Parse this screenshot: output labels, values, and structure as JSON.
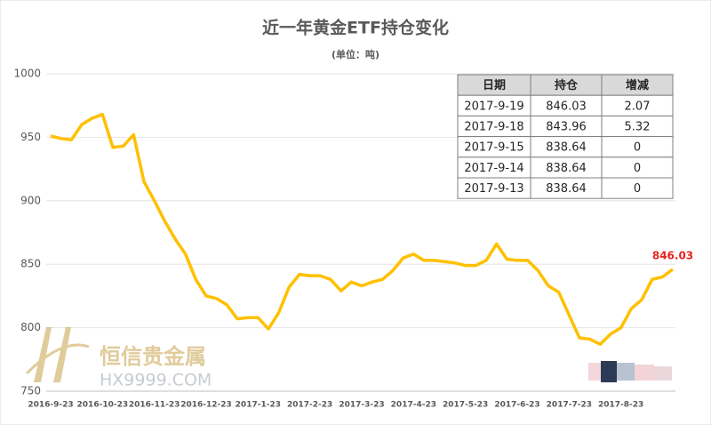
{
  "chart_data": {
    "type": "line",
    "title": "近一年黄金ETF持仓变化",
    "subtitle": "(单位：吨)",
    "categories": [
      "2016-9-23",
      null,
      null,
      null,
      null,
      "2016-10-23",
      null,
      null,
      null,
      null,
      "2016-11-23",
      null,
      null,
      null,
      null,
      "2016-12-23",
      null,
      null,
      null,
      null,
      "2017-1-23",
      null,
      null,
      null,
      null,
      "2017-2-23",
      null,
      null,
      null,
      null,
      "2017-3-23",
      null,
      null,
      null,
      null,
      "2017-4-23",
      null,
      null,
      null,
      null,
      "2017-5-23",
      null,
      null,
      null,
      null,
      "2017-6-23",
      null,
      null,
      null,
      null,
      "2017-7-23",
      null,
      null,
      null,
      null,
      "2017-8-23",
      null,
      null,
      null,
      null,
      null
    ],
    "series": [
      {
        "color": "#ffc000",
        "values": [
          951,
          949,
          948,
          960,
          965,
          968,
          942,
          943,
          952,
          915,
          900,
          884,
          870,
          858,
          838,
          825,
          823,
          818,
          807,
          808,
          808,
          799,
          812,
          832,
          842,
          841,
          841,
          838,
          829,
          836,
          833,
          836,
          838,
          845,
          855,
          858,
          853,
          853,
          852,
          851,
          849,
          849,
          853,
          866,
          854,
          853,
          853,
          845,
          833,
          828,
          810,
          792,
          791,
          787,
          795,
          800,
          815,
          822,
          838,
          840,
          846.03
        ]
      }
    ],
    "last_label_color": "#e8231e",
    "ylim": [
      750,
      1000
    ],
    "yticks": [
      750,
      800,
      850,
      900,
      950,
      1000
    ],
    "grid": true
  },
  "table": {
    "header": [
      "日期",
      "持仓",
      "增减"
    ],
    "rows": [
      [
        "2017-9-19",
        "846.03",
        "2.07"
      ],
      [
        "2017-9-18",
        "843.96",
        "5.32"
      ],
      [
        "2017-9-15",
        "838.64",
        "0"
      ],
      [
        "2017-9-14",
        "838.64",
        "0"
      ],
      [
        "2017-9-13",
        "838.64",
        "0"
      ]
    ]
  },
  "watermark": {
    "brand": "恒信贵金属",
    "site": "HX9999.COM"
  }
}
